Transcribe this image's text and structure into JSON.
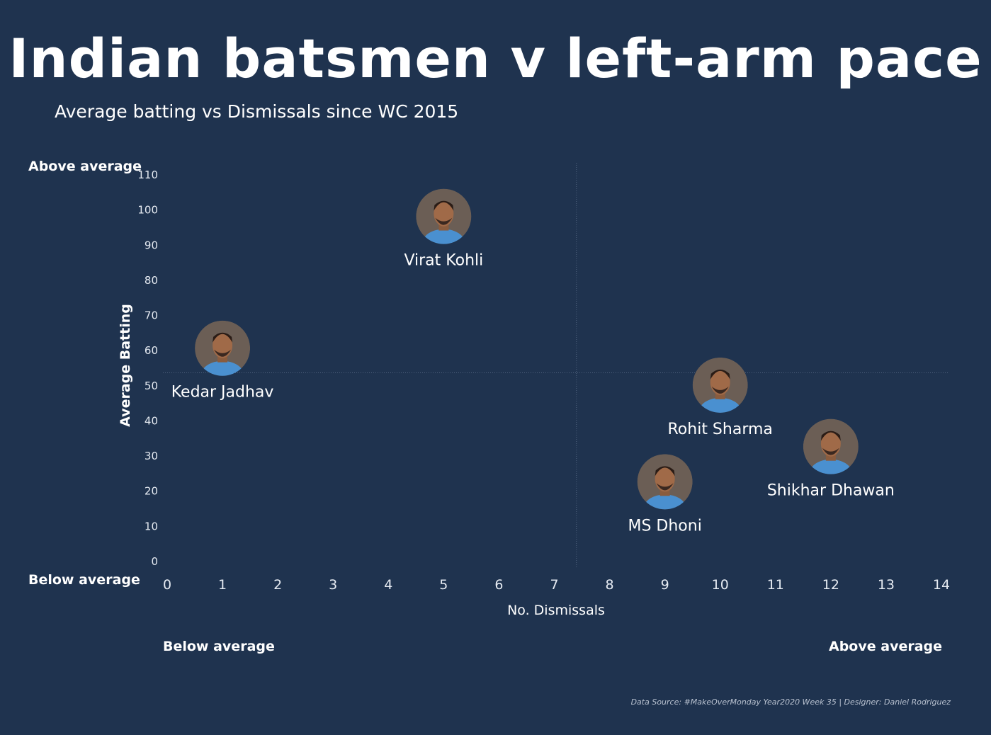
{
  "title": "Indian batsmen v left-arm pace",
  "subtitle": "Average batting vs Dismissals since WC 2015",
  "quadrant_labels": {
    "y_above": "Above average",
    "y_below": "Below average",
    "x_below": "Below average",
    "x_above": "Above average"
  },
  "source": "Data Source: #MakeOverMonday Year2020 Week 35 | Designer: Daniel Rodriguez",
  "colors": {
    "background": "#1f334f",
    "text": "#ffffff",
    "reference_line": "#4f627e",
    "photo_circle": "#6b5e55",
    "jersey_blue": "#4a90d0"
  },
  "chart_data": {
    "type": "scatter",
    "title": "Indian batsmen v left-arm pace",
    "subtitle": "Average batting vs Dismissals since WC 2015",
    "xlabel": "No. Dismissals",
    "ylabel": "Average Batting",
    "xlim": [
      0,
      14
    ],
    "ylim": [
      0,
      110
    ],
    "x_ticks": [
      0,
      1,
      2,
      3,
      4,
      5,
      6,
      7,
      8,
      9,
      10,
      11,
      12,
      13,
      14
    ],
    "y_ticks": [
      0,
      10,
      20,
      30,
      40,
      50,
      60,
      70,
      80,
      90,
      100,
      110
    ],
    "grid": false,
    "reference_lines": {
      "x_average": 7.4,
      "y_average": 53.5
    },
    "points": [
      {
        "label": "Kedar Jadhav",
        "x": 1,
        "y": 60.5,
        "icon": "player-photo-icon"
      },
      {
        "label": "Virat Kohli",
        "x": 5,
        "y": 98,
        "icon": "player-photo-icon"
      },
      {
        "label": "Rohit Sharma",
        "x": 10,
        "y": 50,
        "icon": "player-photo-icon"
      },
      {
        "label": "MS Dhoni",
        "x": 9,
        "y": 22.5,
        "icon": "player-photo-icon"
      },
      {
        "label": "Shikhar Dhawan",
        "x": 12,
        "y": 32.5,
        "icon": "player-photo-icon"
      }
    ]
  }
}
